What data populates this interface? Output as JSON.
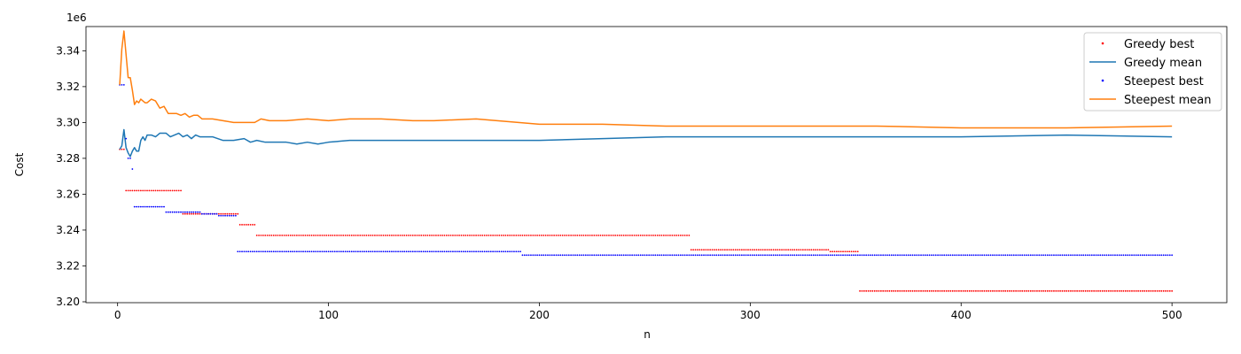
{
  "chart_data": {
    "type": "scatter",
    "xlabel": "n",
    "ylabel": "Cost",
    "y_offset_label": "1e6",
    "xlim": [
      -15,
      526
    ],
    "ylim": [
      3.1995,
      3.3535
    ],
    "x_ticks": [
      0,
      100,
      200,
      300,
      400,
      500
    ],
    "x_tick_labels": [
      "0",
      "100",
      "200",
      "300",
      "400",
      "500"
    ],
    "y_ticks": [
      3.2,
      3.22,
      3.24,
      3.26,
      3.28,
      3.3,
      3.32,
      3.34
    ],
    "y_tick_labels": [
      "3.20",
      "3.22",
      "3.24",
      "3.26",
      "3.28",
      "3.30",
      "3.32",
      "3.34"
    ],
    "grid": false,
    "legend_position": "top-right",
    "n_points": 500,
    "series": [
      {
        "name": "Greedy best",
        "kind": "points",
        "color": "#ff0000",
        "steps": [
          [
            1,
            3.285
          ],
          [
            4,
            3.262
          ],
          [
            31,
            3.249
          ],
          [
            58,
            3.243
          ],
          [
            66,
            3.237
          ],
          [
            272,
            3.229
          ],
          [
            338,
            3.228
          ],
          [
            352,
            3.206
          ]
        ]
      },
      {
        "name": "Greedy mean",
        "kind": "line",
        "color": "#1f77b4",
        "points": [
          [
            1,
            3.285
          ],
          [
            2,
            3.287
          ],
          [
            3,
            3.296
          ],
          [
            4,
            3.286
          ],
          [
            5,
            3.283
          ],
          [
            6,
            3.281
          ],
          [
            7,
            3.284
          ],
          [
            8,
            3.286
          ],
          [
            9,
            3.284
          ],
          [
            10,
            3.284
          ],
          [
            11,
            3.29
          ],
          [
            12,
            3.292
          ],
          [
            13,
            3.29
          ],
          [
            14,
            3.293
          ],
          [
            16,
            3.293
          ],
          [
            18,
            3.292
          ],
          [
            20,
            3.294
          ],
          [
            23,
            3.294
          ],
          [
            25,
            3.292
          ],
          [
            27,
            3.293
          ],
          [
            29,
            3.294
          ],
          [
            31,
            3.292
          ],
          [
            33,
            3.293
          ],
          [
            35,
            3.291
          ],
          [
            37,
            3.293
          ],
          [
            39,
            3.292
          ],
          [
            45,
            3.292
          ],
          [
            50,
            3.29
          ],
          [
            55,
            3.29
          ],
          [
            60,
            3.291
          ],
          [
            63,
            3.289
          ],
          [
            66,
            3.29
          ],
          [
            70,
            3.289
          ],
          [
            80,
            3.289
          ],
          [
            85,
            3.288
          ],
          [
            90,
            3.289
          ],
          [
            95,
            3.288
          ],
          [
            100,
            3.289
          ],
          [
            110,
            3.29
          ],
          [
            120,
            3.29
          ],
          [
            130,
            3.29
          ],
          [
            150,
            3.29
          ],
          [
            170,
            3.29
          ],
          [
            200,
            3.29
          ],
          [
            230,
            3.291
          ],
          [
            260,
            3.292
          ],
          [
            300,
            3.292
          ],
          [
            330,
            3.292
          ],
          [
            350,
            3.292
          ],
          [
            380,
            3.292
          ],
          [
            400,
            3.292
          ],
          [
            450,
            3.293
          ],
          [
            500,
            3.292
          ]
        ]
      },
      {
        "name": "Steepest best",
        "kind": "points",
        "color": "#0000ff",
        "steps": [
          [
            1,
            3.321
          ],
          [
            4,
            3.291
          ],
          [
            5,
            3.28
          ],
          [
            7,
            3.274
          ],
          [
            8,
            3.253
          ],
          [
            23,
            3.25
          ],
          [
            40,
            3.249
          ],
          [
            48,
            3.248
          ],
          [
            57,
            3.228
          ],
          [
            192,
            3.226
          ]
        ]
      },
      {
        "name": "Steepest mean",
        "kind": "line",
        "color": "#ff7f0e",
        "points": [
          [
            1,
            3.321
          ],
          [
            2,
            3.341
          ],
          [
            3,
            3.351
          ],
          [
            4,
            3.338
          ],
          [
            5,
            3.325
          ],
          [
            6,
            3.325
          ],
          [
            7,
            3.318
          ],
          [
            8,
            3.31
          ],
          [
            9,
            3.312
          ],
          [
            10,
            3.311
          ],
          [
            11,
            3.313
          ],
          [
            12,
            3.312
          ],
          [
            13,
            3.311
          ],
          [
            14,
            3.311
          ],
          [
            16,
            3.313
          ],
          [
            18,
            3.312
          ],
          [
            20,
            3.308
          ],
          [
            22,
            3.309
          ],
          [
            24,
            3.305
          ],
          [
            26,
            3.305
          ],
          [
            28,
            3.305
          ],
          [
            30,
            3.304
          ],
          [
            32,
            3.305
          ],
          [
            34,
            3.303
          ],
          [
            36,
            3.304
          ],
          [
            38,
            3.304
          ],
          [
            40,
            3.302
          ],
          [
            45,
            3.302
          ],
          [
            50,
            3.301
          ],
          [
            55,
            3.3
          ],
          [
            60,
            3.3
          ],
          [
            65,
            3.3
          ],
          [
            68,
            3.302
          ],
          [
            72,
            3.301
          ],
          [
            80,
            3.301
          ],
          [
            90,
            3.302
          ],
          [
            100,
            3.301
          ],
          [
            110,
            3.302
          ],
          [
            120,
            3.302
          ],
          [
            125,
            3.302
          ],
          [
            140,
            3.301
          ],
          [
            150,
            3.301
          ],
          [
            170,
            3.302
          ],
          [
            190,
            3.3
          ],
          [
            200,
            3.299
          ],
          [
            230,
            3.299
          ],
          [
            260,
            3.298
          ],
          [
            300,
            3.298
          ],
          [
            330,
            3.298
          ],
          [
            360,
            3.298
          ],
          [
            400,
            3.297
          ],
          [
            450,
            3.297
          ],
          [
            500,
            3.298
          ]
        ]
      }
    ]
  }
}
